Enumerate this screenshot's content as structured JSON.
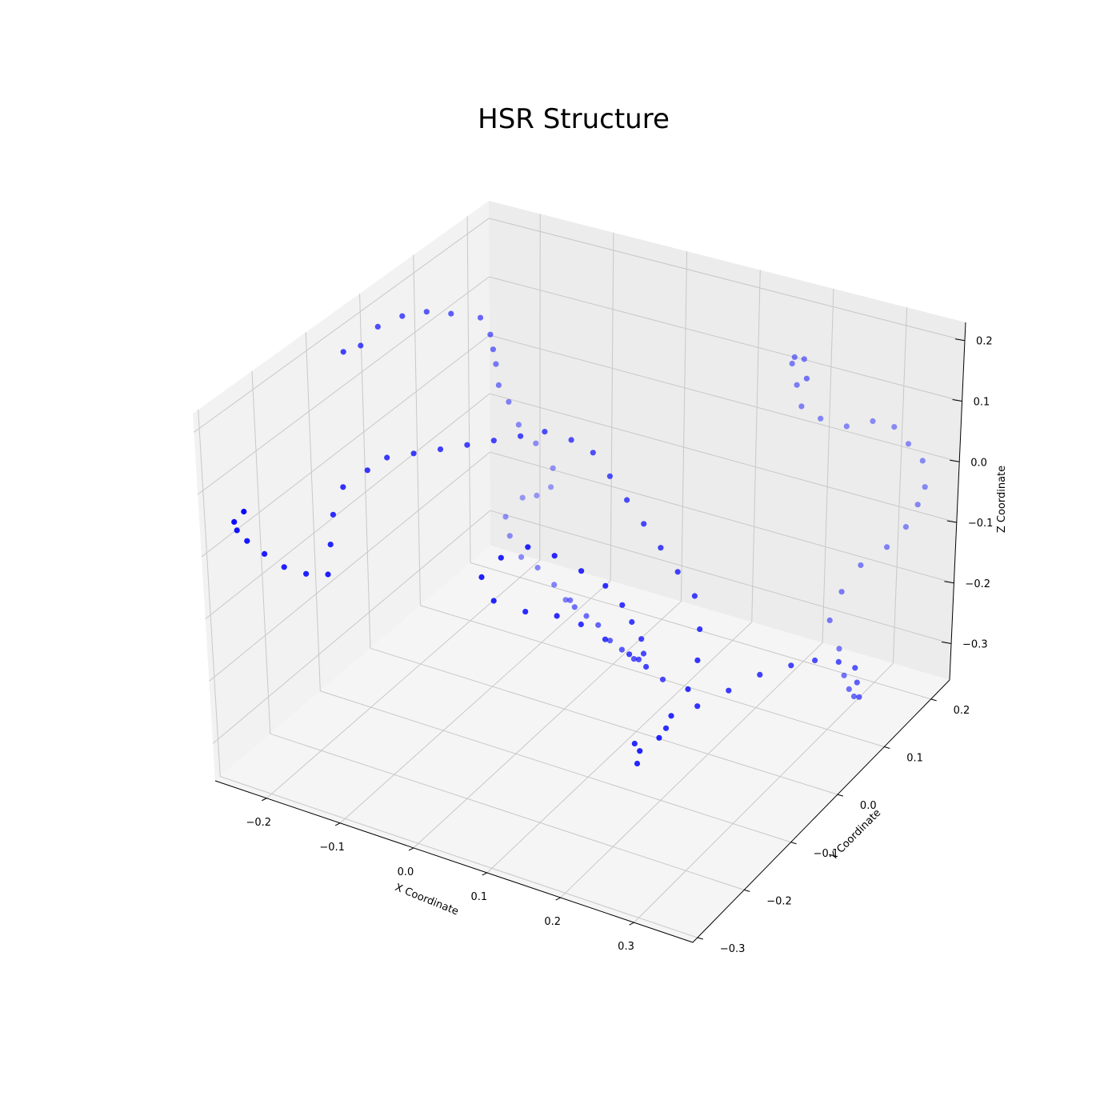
{
  "chart_data": {
    "type": "scatter",
    "projection": "3d",
    "title": "HSR Structure",
    "xlabel": "X Coordinate",
    "ylabel": "Y Coordinate",
    "zlabel": "Z Coordinate",
    "xlim": [
      -0.27,
      0.38
    ],
    "ylim": [
      -0.31,
      0.24
    ],
    "zlim": [
      -0.36,
      0.23
    ],
    "xticks": [
      "−0.2",
      "−0.1",
      "0.0",
      "0.1",
      "0.2",
      "0.3"
    ],
    "yticks": [
      "−0.3",
      "−0.2",
      "−0.1",
      "0.0",
      "0.1",
      "0.2"
    ],
    "zticks": [
      "−0.3",
      "−0.2",
      "−0.1",
      "0.0",
      "0.1",
      "0.2"
    ],
    "xtick_values": [
      -0.2,
      -0.1,
      0.0,
      0.1,
      0.2,
      0.3
    ],
    "ytick_values": [
      -0.3,
      -0.2,
      -0.1,
      0.0,
      0.1,
      0.2
    ],
    "ztick_values": [
      -0.3,
      -0.2,
      -0.1,
      0.0,
      0.1,
      0.2
    ],
    "grid": true,
    "marker_color": "#0000ff",
    "pane_colors": {
      "left": "#f2f2f2",
      "right": "#ececec",
      "floor": "#f5f5f5"
    },
    "grid_color": "#c8c8c8",
    "series": [
      {
        "points": [
          [
            -0.25,
            -0.08,
            0.17
          ],
          [
            -0.24,
            -0.06,
            0.17
          ],
          [
            -0.23,
            -0.04,
            0.19
          ],
          [
            -0.21,
            -0.02,
            0.2
          ],
          [
            -0.19,
            0.0,
            0.2
          ],
          [
            -0.17,
            0.02,
            0.19
          ],
          [
            -0.15,
            0.05,
            0.17
          ],
          [
            -0.15,
            0.07,
            0.13
          ],
          [
            -0.16,
            0.09,
            0.09
          ],
          [
            -0.17,
            0.11,
            0.05
          ],
          [
            -0.18,
            0.13,
            0.0
          ],
          [
            -0.18,
            0.15,
            -0.04
          ],
          [
            -0.18,
            0.17,
            -0.09
          ],
          [
            -0.17,
            0.19,
            -0.13
          ],
          [
            -0.16,
            0.21,
            -0.18
          ],
          [
            -0.17,
            0.22,
            -0.22
          ],
          [
            -0.19,
            0.22,
            -0.24
          ],
          [
            -0.21,
            0.22,
            -0.25
          ],
          [
            -0.22,
            0.2,
            -0.27
          ],
          [
            -0.2,
            0.18,
            -0.28
          ],
          [
            -0.17,
            0.16,
            -0.29
          ],
          [
            -0.14,
            0.15,
            -0.29
          ],
          [
            -0.11,
            0.14,
            -0.3
          ],
          [
            -0.08,
            0.12,
            -0.3
          ],
          [
            -0.06,
            0.1,
            -0.28
          ],
          [
            -0.04,
            0.08,
            -0.27
          ],
          [
            -0.01,
            0.06,
            -0.26
          ],
          [
            0.02,
            0.04,
            -0.25
          ],
          [
            0.05,
            0.02,
            -0.25
          ],
          [
            0.08,
            0.0,
            -0.24
          ],
          [
            0.11,
            -0.02,
            -0.23
          ],
          [
            0.13,
            -0.04,
            -0.21
          ],
          [
            0.15,
            -0.06,
            -0.18
          ],
          [
            0.16,
            -0.08,
            -0.14
          ],
          [
            0.16,
            -0.1,
            -0.1
          ],
          [
            0.16,
            -0.12,
            -0.06
          ],
          [
            0.15,
            -0.14,
            -0.02
          ],
          [
            0.13,
            -0.16,
            0.01
          ],
          [
            0.1,
            -0.17,
            0.03
          ],
          [
            0.07,
            -0.18,
            0.04
          ],
          [
            0.04,
            -0.19,
            0.02
          ],
          [
            0.02,
            -0.2,
            -0.01
          ],
          [
            0.03,
            -0.19,
            -0.05
          ],
          [
            0.06,
            -0.17,
            -0.07
          ],
          [
            0.09,
            -0.15,
            -0.08
          ],
          [
            0.11,
            -0.13,
            -0.1
          ],
          [
            0.13,
            -0.11,
            -0.13
          ],
          [
            0.15,
            -0.09,
            -0.16
          ],
          [
            0.16,
            -0.07,
            -0.19
          ],
          [
            0.17,
            -0.05,
            -0.22
          ]
        ]
      },
      {
        "points": [
          [
            -0.25,
            -0.28,
            0.05
          ],
          [
            -0.27,
            -0.27,
            0.02
          ],
          [
            -0.28,
            -0.25,
            -0.01
          ],
          [
            -0.28,
            -0.23,
            -0.04
          ],
          [
            -0.27,
            -0.21,
            -0.07
          ],
          [
            -0.25,
            -0.2,
            -0.09
          ],
          [
            -0.22,
            -0.2,
            -0.09
          ],
          [
            -0.19,
            -0.2,
            -0.08
          ],
          [
            -0.2,
            -0.18,
            -0.05
          ],
          [
            -0.21,
            -0.16,
            -0.02
          ],
          [
            -0.21,
            -0.14,
            0.01
          ],
          [
            -0.19,
            -0.12,
            0.03
          ],
          [
            -0.17,
            -0.11,
            0.05
          ],
          [
            -0.14,
            -0.1,
            0.06
          ],
          [
            -0.11,
            -0.09,
            0.07
          ],
          [
            -0.08,
            -0.08,
            0.08
          ],
          [
            -0.05,
            -0.07,
            0.09
          ],
          [
            -0.02,
            -0.06,
            0.1
          ],
          [
            0.0,
            -0.04,
            0.1
          ],
          [
            0.03,
            -0.03,
            0.09
          ],
          [
            0.06,
            -0.03,
            0.08
          ],
          [
            0.09,
            -0.04,
            0.06
          ],
          [
            0.12,
            -0.05,
            0.04
          ],
          [
            0.15,
            -0.06,
            0.02
          ],
          [
            0.18,
            -0.07,
            0.0
          ],
          [
            0.21,
            -0.08,
            -0.02
          ],
          [
            0.24,
            -0.09,
            -0.04
          ],
          [
            0.26,
            -0.11,
            -0.07
          ],
          [
            0.27,
            -0.13,
            -0.1
          ],
          [
            0.27,
            -0.15,
            -0.13
          ],
          [
            0.26,
            -0.17,
            -0.16
          ],
          [
            0.25,
            -0.18,
            -0.19
          ],
          [
            0.23,
            -0.19,
            -0.21
          ],
          [
            0.22,
            -0.18,
            -0.24
          ],
          [
            0.21,
            -0.17,
            -0.22
          ],
          [
            0.24,
            -0.15,
            -0.2
          ],
          [
            0.27,
            -0.13,
            -0.17
          ],
          [
            0.3,
            -0.11,
            -0.15
          ],
          [
            0.33,
            -0.09,
            -0.13
          ],
          [
            0.36,
            -0.07,
            -0.12
          ],
          [
            0.38,
            -0.05,
            -0.12
          ],
          [
            0.4,
            -0.03,
            -0.13
          ],
          [
            0.41,
            -0.01,
            -0.15
          ],
          [
            0.4,
            0.01,
            -0.19
          ],
          [
            0.39,
            0.03,
            -0.23
          ],
          [
            0.37,
            0.05,
            -0.25
          ],
          [
            0.35,
            0.07,
            -0.26
          ],
          [
            0.33,
            0.09,
            -0.26
          ],
          [
            0.31,
            0.11,
            -0.24
          ],
          [
            0.29,
            0.12,
            -0.21
          ],
          [
            0.3,
            0.13,
            -0.17
          ],
          [
            0.32,
            0.14,
            -0.13
          ],
          [
            0.35,
            0.15,
            -0.1
          ],
          [
            0.37,
            0.16,
            -0.07
          ],
          [
            0.38,
            0.17,
            -0.04
          ],
          [
            0.39,
            0.17,
            -0.01
          ],
          [
            0.38,
            0.18,
            0.02
          ],
          [
            0.36,
            0.18,
            0.04
          ],
          [
            0.34,
            0.18,
            0.06
          ],
          [
            0.31,
            0.18,
            0.06
          ],
          [
            0.28,
            0.17,
            0.05
          ],
          [
            0.25,
            0.16,
            0.06
          ],
          [
            0.23,
            0.15,
            0.08
          ],
          [
            0.23,
            0.14,
            0.12
          ],
          [
            0.23,
            0.13,
            0.16
          ],
          [
            0.24,
            0.12,
            0.18
          ],
          [
            0.26,
            0.11,
            0.19
          ],
          [
            0.27,
            0.1,
            0.17
          ]
        ]
      }
    ]
  }
}
